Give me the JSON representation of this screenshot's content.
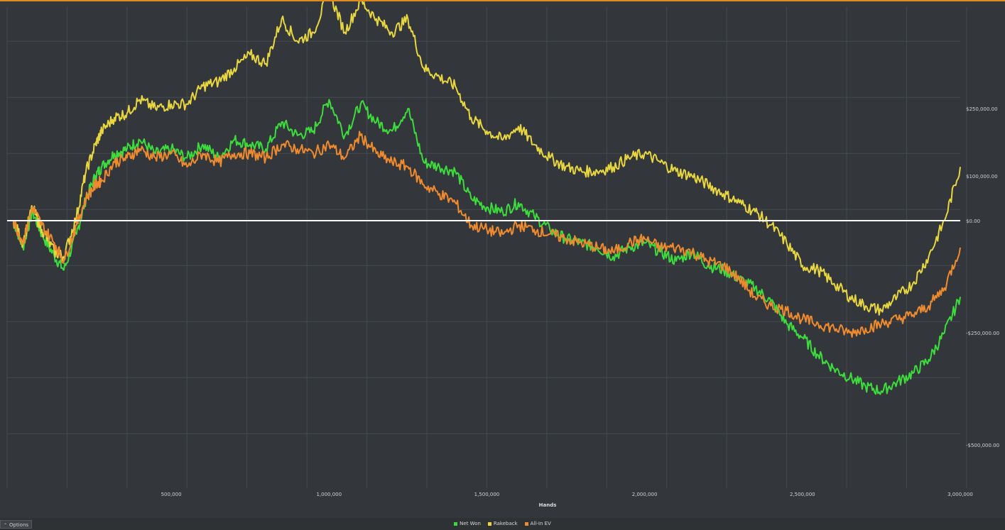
{
  "options_button": {
    "label": "Options",
    "icon": "chevron-up-icon"
  },
  "colors": {
    "background": "#33373b",
    "grid": "#454a4e",
    "zero_line": "#ffffff",
    "net_won": "#3ddc3d",
    "rakeback": "#e8d640",
    "all_in_ev": "#ef8a2e",
    "top_accent": "#e08a1e"
  },
  "chart_data": {
    "type": "line",
    "xlabel": "Hands",
    "ylabel": "",
    "xlim": [
      0,
      3000000
    ],
    "ylim": [
      -600000,
      650000
    ],
    "grid": true,
    "legend_position": "bottom-center",
    "x_ticks": [
      {
        "value": 500000,
        "label": "500,000"
      },
      {
        "value": 1000000,
        "label": "1,000,000"
      },
      {
        "value": 1500000,
        "label": "1,500,000"
      },
      {
        "value": 2000000,
        "label": "2,000,000"
      },
      {
        "value": 2500000,
        "label": "2,500,000"
      },
      {
        "value": 3000000,
        "label": "3,000,000"
      }
    ],
    "y_ticks": [
      {
        "value": 250000,
        "label": "$250,000.00"
      },
      {
        "value": 100000,
        "label": "$100,000.00"
      },
      {
        "value": 0,
        "label": "$0.00"
      },
      {
        "value": -250000,
        "label": "-$250,000.00"
      },
      {
        "value": -500000,
        "label": "-$500,000.00"
      }
    ],
    "series": [
      {
        "name": "Net Won",
        "color": "#3ddc3d",
        "x": [
          0,
          30000,
          60000,
          90000,
          130000,
          160000,
          200000,
          230000,
          260000,
          280000,
          320000,
          360000,
          400000,
          450000,
          500000,
          550000,
          600000,
          650000,
          700000,
          750000,
          800000,
          850000,
          900000,
          950000,
          1000000,
          1050000,
          1100000,
          1150000,
          1200000,
          1250000,
          1300000,
          1350000,
          1400000,
          1450000,
          1500000,
          1550000,
          1600000,
          1650000,
          1700000,
          1750000,
          1800000,
          1850000,
          1900000,
          1950000,
          2000000,
          2050000,
          2100000,
          2150000,
          2200000,
          2250000,
          2300000,
          2350000,
          2400000,
          2450000,
          2500000,
          2550000,
          2600000,
          2650000,
          2700000,
          2750000,
          2800000,
          2850000,
          2900000,
          2950000,
          3000000
        ],
        "y": [
          0,
          -60000,
          20000,
          -30000,
          -80000,
          -110000,
          -30000,
          50000,
          100000,
          120000,
          150000,
          160000,
          180000,
          150000,
          160000,
          140000,
          170000,
          140000,
          180000,
          170000,
          160000,
          220000,
          190000,
          200000,
          270000,
          190000,
          260000,
          220000,
          200000,
          250000,
          130000,
          120000,
          110000,
          50000,
          30000,
          20000,
          40000,
          10000,
          -20000,
          -40000,
          -50000,
          -60000,
          -80000,
          -60000,
          -50000,
          -70000,
          -90000,
          -70000,
          -100000,
          -110000,
          -130000,
          -150000,
          -180000,
          -230000,
          -260000,
          -300000,
          -330000,
          -350000,
          -370000,
          -380000,
          -360000,
          -340000,
          -310000,
          -250000,
          -170000
        ]
      },
      {
        "name": "Rakeback",
        "color": "#e8d640",
        "x": [
          0,
          30000,
          60000,
          90000,
          130000,
          160000,
          200000,
          230000,
          260000,
          280000,
          320000,
          360000,
          400000,
          450000,
          500000,
          550000,
          600000,
          650000,
          700000,
          750000,
          800000,
          850000,
          900000,
          950000,
          1000000,
          1050000,
          1100000,
          1150000,
          1200000,
          1250000,
          1300000,
          1350000,
          1400000,
          1450000,
          1500000,
          1550000,
          1600000,
          1650000,
          1700000,
          1750000,
          1800000,
          1850000,
          1900000,
          1950000,
          2000000,
          2050000,
          2100000,
          2150000,
          2200000,
          2250000,
          2300000,
          2350000,
          2400000,
          2450000,
          2500000,
          2550000,
          2600000,
          2650000,
          2700000,
          2750000,
          2800000,
          2850000,
          2900000,
          2950000,
          3000000
        ],
        "y": [
          0,
          -50000,
          30000,
          -20000,
          -70000,
          -80000,
          10000,
          110000,
          170000,
          200000,
          230000,
          240000,
          270000,
          250000,
          260000,
          260000,
          300000,
          310000,
          340000,
          370000,
          350000,
          450000,
          400000,
          420000,
          510000,
          420000,
          490000,
          450000,
          420000,
          450000,
          340000,
          320000,
          300000,
          230000,
          200000,
          180000,
          210000,
          170000,
          140000,
          120000,
          110000,
          110000,
          120000,
          140000,
          150000,
          130000,
          110000,
          100000,
          80000,
          60000,
          40000,
          20000,
          -10000,
          -50000,
          -100000,
          -110000,
          -140000,
          -170000,
          -190000,
          -200000,
          -170000,
          -140000,
          -80000,
          0,
          120000
        ]
      },
      {
        "name": "All-In EV",
        "color": "#ef8a2e",
        "x": [
          0,
          30000,
          60000,
          90000,
          130000,
          160000,
          200000,
          230000,
          260000,
          280000,
          320000,
          360000,
          400000,
          450000,
          500000,
          550000,
          600000,
          650000,
          700000,
          750000,
          800000,
          850000,
          900000,
          950000,
          1000000,
          1050000,
          1100000,
          1150000,
          1200000,
          1250000,
          1300000,
          1350000,
          1400000,
          1450000,
          1500000,
          1550000,
          1600000,
          1650000,
          1700000,
          1750000,
          1800000,
          1850000,
          1900000,
          1950000,
          2000000,
          2050000,
          2100000,
          2150000,
          2200000,
          2250000,
          2300000,
          2350000,
          2400000,
          2450000,
          2500000,
          2550000,
          2600000,
          2650000,
          2700000,
          2750000,
          2800000,
          2850000,
          2900000,
          2950000,
          3000000
        ],
        "y": [
          0,
          -50000,
          30000,
          -10000,
          -50000,
          -90000,
          -10000,
          50000,
          80000,
          90000,
          130000,
          140000,
          160000,
          140000,
          150000,
          120000,
          150000,
          130000,
          150000,
          150000,
          140000,
          170000,
          160000,
          150000,
          170000,
          140000,
          190000,
          150000,
          130000,
          120000,
          80000,
          60000,
          40000,
          -10000,
          -20000,
          -30000,
          -10000,
          -20000,
          -30000,
          -40000,
          -50000,
          -60000,
          -70000,
          -50000,
          -40000,
          -60000,
          -60000,
          -70000,
          -90000,
          -100000,
          -130000,
          -170000,
          -190000,
          -200000,
          -220000,
          -230000,
          -240000,
          -250000,
          -240000,
          -230000,
          -220000,
          -210000,
          -190000,
          -150000,
          -60000
        ]
      }
    ]
  }
}
